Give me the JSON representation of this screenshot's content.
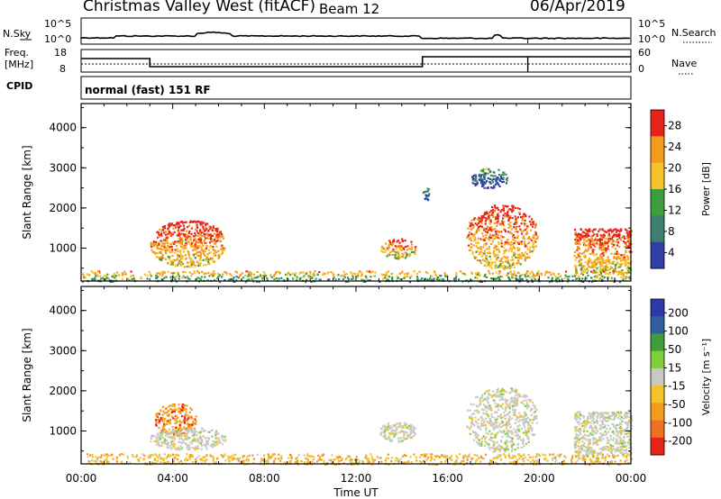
{
  "header": {
    "station": "Christmas Valley West (fitACF)",
    "beam": "Beam 12",
    "date": "06/Apr/2019"
  },
  "noise_panel": {
    "left_label": "N.Sky",
    "right_label": "N.Search",
    "ticks": [
      "10^5",
      "10^0"
    ]
  },
  "freq_panel": {
    "left_label_line1": "Freq.",
    "left_label_line2": "[MHz]",
    "left_ticks": [
      "18",
      "8"
    ],
    "right_ticks": [
      "60",
      "0"
    ],
    "right_label": "Nave"
  },
  "cpid": {
    "label": "CPID",
    "program": "normal (fast) 151 RF"
  },
  "colors": {
    "red": "#e8231a",
    "orange": "#f39b1c",
    "yellow": "#f5c327",
    "green": "#3e9e3c",
    "teal": "#3c7f6e",
    "blue": "#2f3fa7",
    "gray": "#c8c8c4",
    "lightgreen": "#7fcf3d"
  },
  "chart_data": [
    {
      "type": "heatmap",
      "title": "Power",
      "ylabel": "Slant Range [km]",
      "xlabel": "",
      "x_ticks": [
        "00:00",
        "04:00",
        "08:00",
        "12:00",
        "16:00",
        "20:00",
        "00:00"
      ],
      "y_ticks": [
        "1000",
        "2000",
        "3000",
        "4000"
      ],
      "xlim_hours": [
        0,
        24
      ],
      "ylim_km": [
        180,
        4600
      ],
      "colorbar": {
        "label": "Power [dB]",
        "ticks": [
          "28",
          "24",
          "20",
          "16",
          "12",
          "8",
          "4"
        ],
        "range": [
          0,
          30
        ]
      },
      "regions": [
        {
          "t": [
            3.0,
            6.3
          ],
          "range_km": [
            550,
            1700
          ],
          "value_db": 22
        },
        {
          "t": [
            13.0,
            14.6
          ],
          "range_km": [
            750,
            1250
          ],
          "value_db": 20
        },
        {
          "t": [
            14.9,
            15.2
          ],
          "range_km": [
            2200,
            2600
          ],
          "value_db": 8
        },
        {
          "t": [
            16.8,
            19.9
          ],
          "range_km": [
            500,
            2100
          ],
          "value_db": 22
        },
        {
          "t": [
            17.0,
            18.6
          ],
          "range_km": [
            2500,
            3000
          ],
          "value_db": 6
        },
        {
          "t": [
            21.5,
            24.0
          ],
          "range_km": [
            400,
            1500
          ],
          "value_db": 22
        },
        {
          "t": [
            0.0,
            24.0
          ],
          "range_km": [
            180,
            450
          ],
          "value_db": 14
        }
      ]
    },
    {
      "type": "heatmap",
      "title": "Velocity",
      "ylabel": "Slant Range [km]",
      "xlabel": "Time UT",
      "x_ticks": [
        "00:00",
        "04:00",
        "08:00",
        "12:00",
        "16:00",
        "20:00",
        "00:00"
      ],
      "y_ticks": [
        "1000",
        "2000",
        "3000",
        "4000"
      ],
      "xlim_hours": [
        0,
        24
      ],
      "ylim_km": [
        180,
        4600
      ],
      "colorbar": {
        "label": "Velocity [m s⁻¹]",
        "ticks": [
          "200",
          "100",
          "50",
          "15",
          "-15",
          "-50",
          "-100",
          "-200"
        ]
      },
      "regions": [
        {
          "t": [
            3.2,
            5.0
          ],
          "range_km": [
            900,
            1700
          ],
          "velocity": -50
        },
        {
          "t": [
            3.0,
            6.3
          ],
          "range_km": [
            550,
            1100
          ],
          "velocity": 0
        },
        {
          "t": [
            13.0,
            14.6
          ],
          "range_km": [
            750,
            1250
          ],
          "velocity": 0
        },
        {
          "t": [
            16.8,
            19.9
          ],
          "range_km": [
            500,
            2100
          ],
          "velocity": 0
        },
        {
          "t": [
            21.5,
            24.0
          ],
          "range_km": [
            400,
            1500
          ],
          "velocity": 0
        },
        {
          "t": [
            0.0,
            24.0
          ],
          "range_km": [
            180,
            450
          ],
          "velocity": -30
        }
      ]
    }
  ]
}
